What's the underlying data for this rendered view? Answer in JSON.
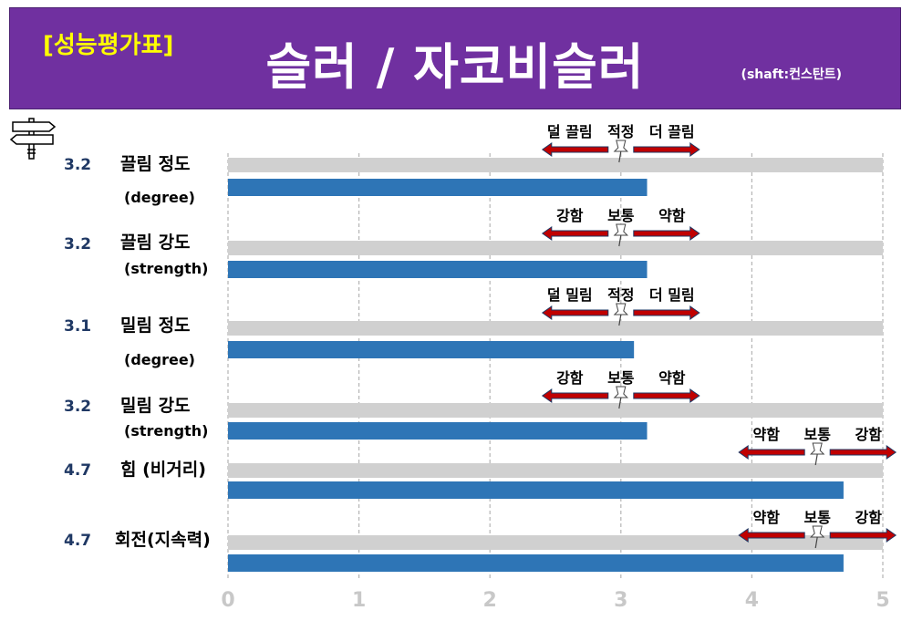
{
  "header": {
    "badge": "[성능평가표]",
    "title": "슬러 / 자코비슬러",
    "subtitle": "(shaft:컨스탄트)"
  },
  "colors": {
    "header_bg": "#7030a0",
    "badge_text": "#ffff00",
    "bar_fill": "#2e75b6",
    "track_fill": "#d0d0d0",
    "score_text": "#1f3864",
    "arrow_fill": "#c00000",
    "arrow_outline": "#1f3864"
  },
  "chart_data": {
    "type": "bar",
    "orientation": "horizontal",
    "xlim": [
      0,
      5
    ],
    "x_ticks": [
      "0",
      "1",
      "2",
      "3",
      "4",
      "5"
    ],
    "grid": "dashed vertical",
    "categories": [
      {
        "label": "끌림 정도",
        "sub": "(degree)",
        "score": "3.2",
        "value": 3.2,
        "scale": {
          "left": "덜 끌림",
          "mid": "적정",
          "right": "더 끌림",
          "center": 3.0
        }
      },
      {
        "label": "끌림 강도",
        "sub": "(strength)",
        "score": "3.2",
        "value": 3.2,
        "scale": {
          "left": "강함",
          "mid": "보통",
          "right": "약함",
          "center": 3.0
        }
      },
      {
        "label": "밀림 정도",
        "sub": "(degree)",
        "score": "3.1",
        "value": 3.1,
        "scale": {
          "left": "덜 밀림",
          "mid": "적정",
          "right": "더 밀림",
          "center": 3.0
        }
      },
      {
        "label": "밀림 강도",
        "sub": "(strength)",
        "score": "3.2",
        "value": 3.2,
        "scale": {
          "left": "강함",
          "mid": "보통",
          "right": "약함",
          "center": 3.0
        }
      },
      {
        "label": "힘 (비거리)",
        "sub": "",
        "score": "4.7",
        "value": 4.7,
        "scale": {
          "left": "약함",
          "mid": "보통",
          "right": "강함",
          "center": 4.5
        }
      },
      {
        "label": "회전(지속력)",
        "sub": "",
        "score": "4.7",
        "value": 4.7,
        "scale": {
          "left": "약함",
          "mid": "보통",
          "right": "강함",
          "center": 4.5
        }
      }
    ]
  }
}
